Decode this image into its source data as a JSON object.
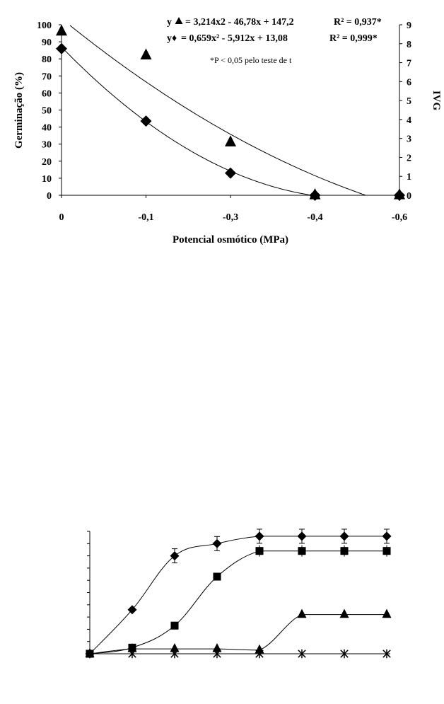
{
  "chart_data": [
    {
      "type": "scatter",
      "title": "",
      "xlabel": "Potencial osmótico (MPa)",
      "ylabel": "Germinação (%)",
      "y2label": "IVG",
      "categories": [
        "0",
        "-0,1",
        "-0,3",
        "-0,4",
        "-0,6"
      ],
      "ylim": [
        0,
        100
      ],
      "yticks": [
        "0",
        "10",
        "20",
        "30",
        "40",
        "50",
        "60",
        "70",
        "80",
        "90",
        "100"
      ],
      "y2lim": [
        0,
        9
      ],
      "y2ticks": [
        "0",
        "1",
        "2",
        "3",
        "4",
        "5",
        "6",
        "7",
        "8",
        "9"
      ],
      "series": [
        {
          "name": "triangle",
          "marker": "triangle",
          "axis": "left",
          "values": [
            96,
            82,
            31,
            0,
            0
          ]
        },
        {
          "name": "diamond",
          "marker": "diamond",
          "axis": "left",
          "values": [
            86,
            43.5,
            13,
            0,
            0
          ]
        }
      ],
      "fits": [
        {
          "marker": "triangle",
          "coeffs": [
            3.214,
            -46.78,
            147.2
          ]
        },
        {
          "marker": "diamond",
          "coeffs": [
            0.659,
            -5.912,
            13.08
          ],
          "scale_axis": "right"
        }
      ],
      "annotations": {
        "eq1_lhs": "y",
        "eq1": "= 3,214x2 - 46,78x + 147,2",
        "eq1_r2": "R² = 0,937*",
        "eq2_lhs": "y♦",
        "eq2": "= 0,659x² - 5,912x + 13,08",
        "eq2_r2": "R² = 0,999*",
        "note": "*P < 0,05 pelo teste de t"
      }
    },
    {
      "type": "line",
      "title": "",
      "xlabel": "",
      "ylabel": "",
      "x": [
        0,
        1,
        2,
        3,
        4,
        5,
        6,
        7
      ],
      "ylim": [
        0,
        100
      ],
      "series": [
        {
          "name": "diamond",
          "marker": "diamond",
          "values": [
            0,
            36,
            80,
            90,
            96,
            96,
            96,
            96
          ]
        },
        {
          "name": "square",
          "marker": "square",
          "values": [
            0,
            5,
            23,
            63,
            84,
            84,
            84,
            84
          ]
        },
        {
          "name": "triangle",
          "marker": "triangle",
          "values": [
            0,
            4,
            4,
            4,
            3,
            32,
            32,
            32
          ]
        },
        {
          "name": "asterisk",
          "marker": "asterisk",
          "values": [
            0,
            0,
            0,
            0,
            0,
            0,
            0,
            0
          ]
        }
      ]
    }
  ]
}
